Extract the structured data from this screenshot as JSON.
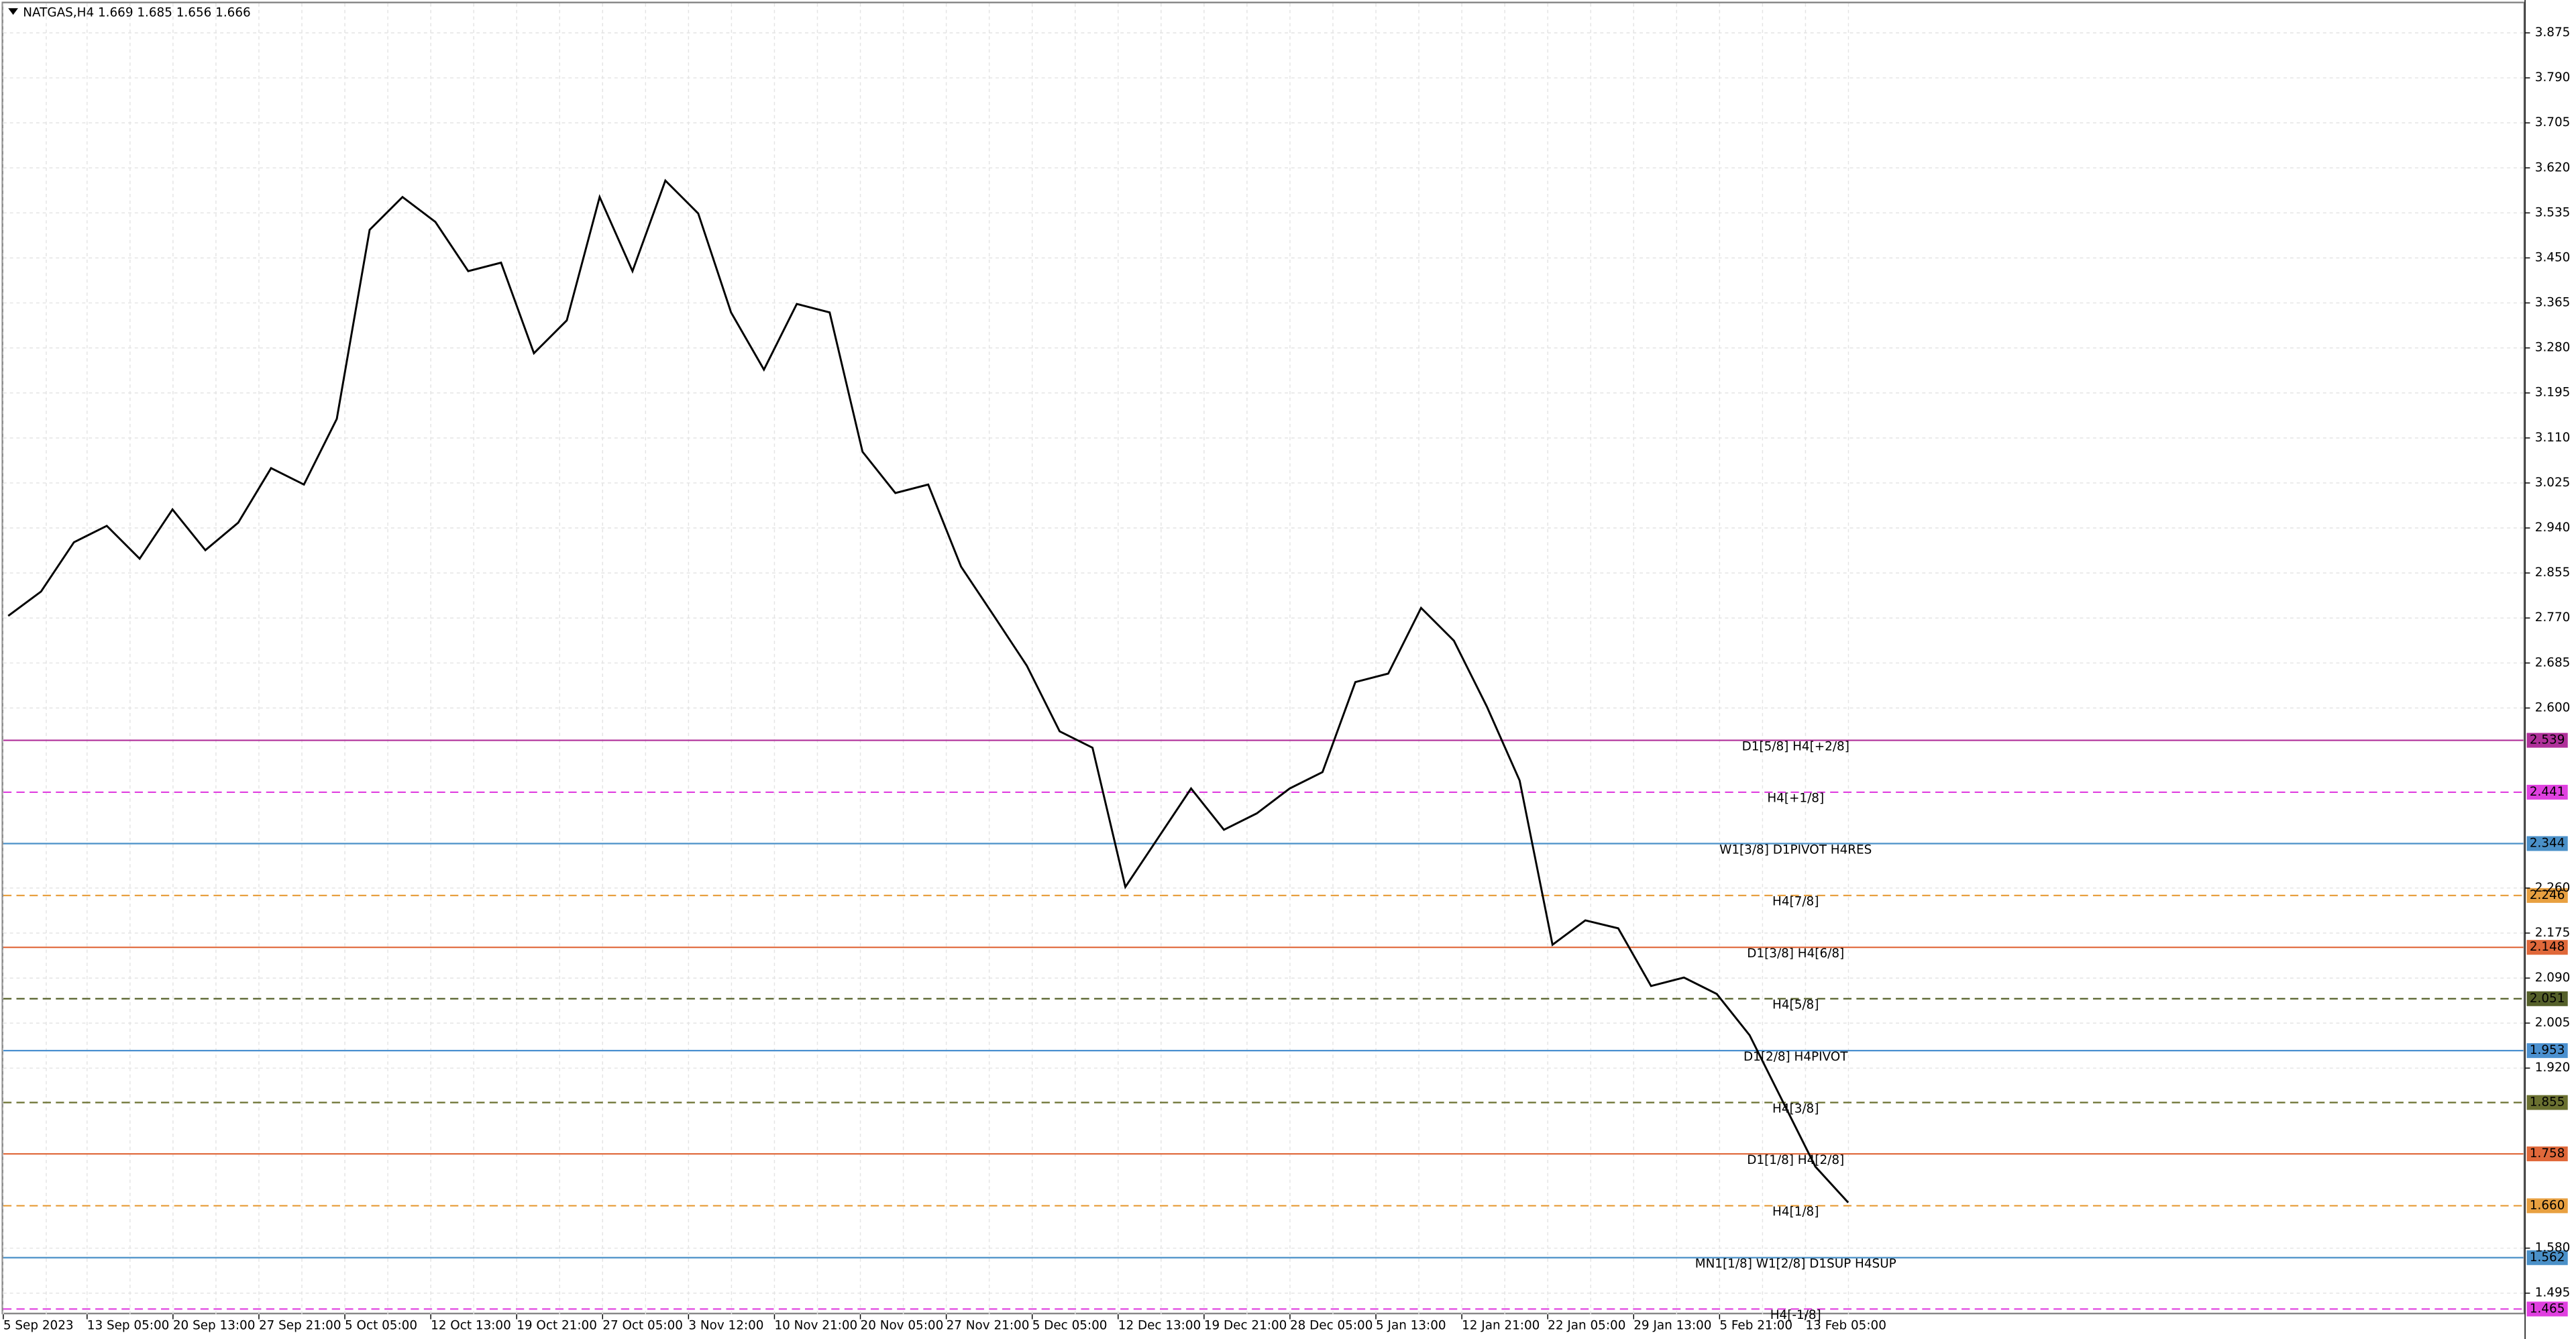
{
  "chart_data": {
    "type": "line",
    "title": "NATGAS,H4  1.669 1.685 1.656 1.666",
    "x_labels": [
      "5 Sep 2023",
      "13 Sep 05:00",
      "20 Sep 13:00",
      "27 Sep 21:00",
      "5 Oct 05:00",
      "12 Oct 13:00",
      "19 Oct 21:00",
      "27 Oct 05:00",
      "3 Nov 12:00",
      "10 Nov 21:00",
      "20 Nov 05:00",
      "27 Nov 21:00",
      "5 Dec 05:00",
      "12 Dec 13:00",
      "19 Dec 21:00",
      "28 Dec 05:00",
      "5 Jan 13:00",
      "12 Jan 21:00",
      "22 Jan 05:00",
      "29 Jan 13:00",
      "5 Feb 21:00",
      "13 Feb 05:00"
    ],
    "values": [
      2.774,
      2.82,
      2.913,
      2.944,
      2.882,
      2.975,
      2.898,
      2.95,
      3.053,
      3.022,
      3.146,
      3.503,
      3.565,
      3.518,
      3.425,
      3.441,
      3.27,
      3.332,
      3.565,
      3.425,
      3.596,
      3.534,
      3.347,
      3.239,
      3.363,
      3.347,
      3.084,
      3.006,
      3.022,
      2.867,
      2.774,
      2.68,
      2.556,
      2.525,
      2.262,
      2.355,
      2.448,
      2.37,
      2.401,
      2.448,
      2.479,
      2.649,
      2.665,
      2.789,
      2.727,
      2.603,
      2.463,
      2.153,
      2.199,
      2.184,
      2.075,
      2.091,
      2.06,
      1.982,
      1.858,
      1.734,
      1.666
    ],
    "color": "#000000",
    "ylim": [
      1.455,
      3.937
    ],
    "yticks": [
      3.875,
      {
        "value": 3.79,
        "label": "3.790"
      },
      3.705,
      {
        "value": 3.62,
        "label": "3.620"
      },
      3.535,
      {
        "value": 3.45,
        "label": "3.450"
      },
      3.365,
      {
        "value": 3.28,
        "label": "3.280"
      },
      3.195,
      {
        "value": 3.11,
        "label": "3.110"
      },
      3.025,
      {
        "value": 2.94,
        "label": "2.940"
      },
      2.855,
      {
        "value": 2.77,
        "label": "2.770"
      },
      2.685,
      {
        "value": 2.6,
        "label": "2.600"
      },
      {
        "value": 2.26,
        "label": "2.260"
      },
      2.175,
      {
        "value": 2.09,
        "label": "2.090"
      },
      2.005,
      {
        "value": 1.92,
        "label": "1.920"
      },
      {
        "value": 1.58,
        "label": "1.580"
      },
      1.495
    ],
    "grid": true,
    "levels": [
      {
        "value": 2.539,
        "label": "D1[5/8] H4[+2/8]",
        "color": "#b0309a",
        "dashed": false
      },
      {
        "value": 2.441,
        "label": "H4[+1/8]",
        "color": "#e040e0",
        "dashed": true
      },
      {
        "value": 2.344,
        "label": "W1[3/8] D1PIVOT H4RES",
        "color": "#4a90c8",
        "dashed": false
      },
      {
        "value": 2.246,
        "label": "H4[7/8]",
        "color": "#e8a040",
        "dashed": true
      },
      {
        "value": 2.148,
        "label": "D1[3/8] H4[6/8]",
        "color": "#e0683a",
        "dashed": false
      },
      {
        "value": 2.051,
        "label": "H4[5/8]",
        "color": "#55602a",
        "dashed": true
      },
      {
        "value": 1.953,
        "label": "D1[2/8] H4PIVOT",
        "color": "#4a90d0",
        "dashed": false
      },
      {
        "value": 1.855,
        "label": "H4[3/8]",
        "color": "#6a7030",
        "dashed": true
      },
      {
        "value": 1.758,
        "label": "D1[1/8] H4[2/8]",
        "color": "#e0683a",
        "dashed": false
      },
      {
        "value": 1.66,
        "value_label": "1.660",
        "label": "H4[1/8]",
        "color": "#e8a040",
        "dashed": true
      },
      {
        "value": 1.562,
        "label": "MN1[1/8] W1[2/8] D1SUP H4SUP",
        "color": "#4a90c8",
        "dashed": false
      },
      {
        "value": 1.465,
        "label": "H4[-1/8]",
        "color": "#e040e0",
        "dashed": true
      }
    ]
  }
}
